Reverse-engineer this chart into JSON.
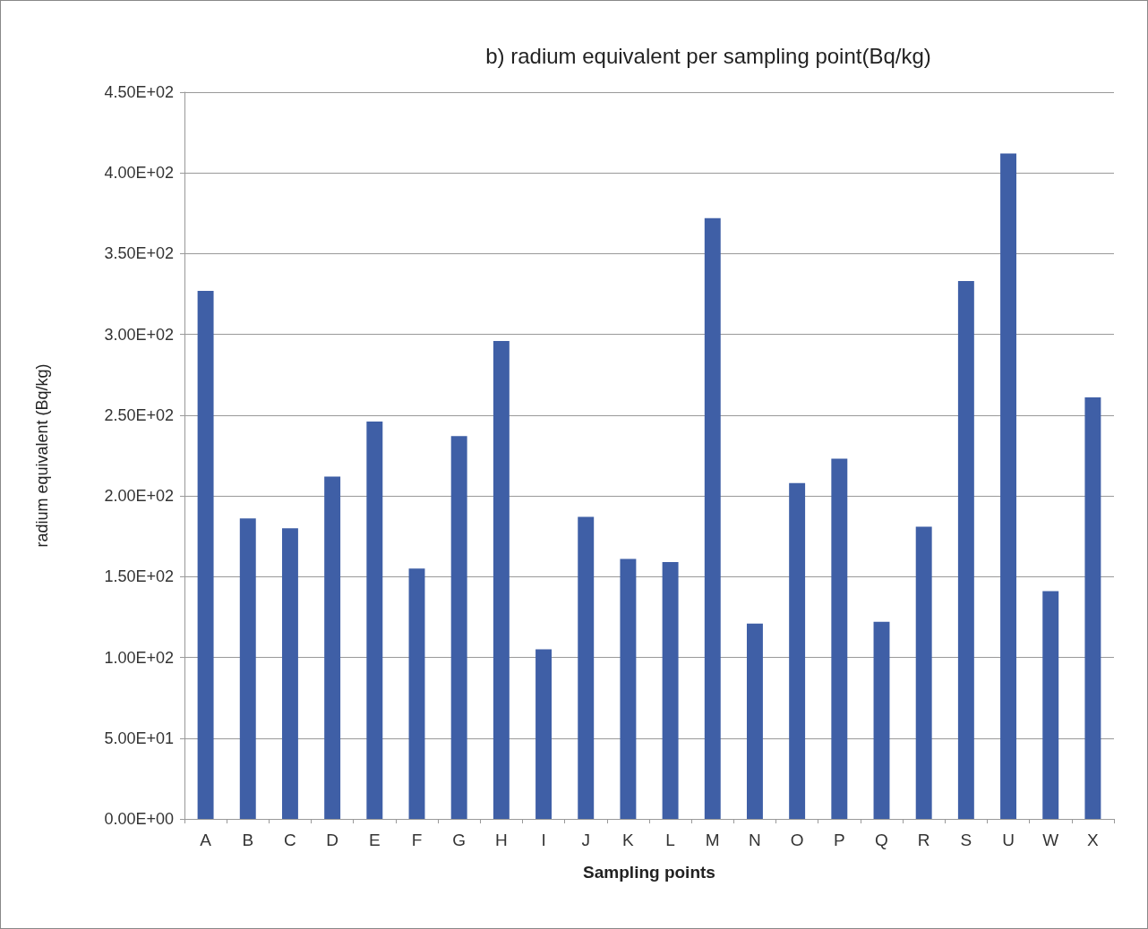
{
  "chart_data": {
    "type": "bar",
    "title": "b) radium equivalent per sampling point(Bq/kg)",
    "xlabel": "Sampling points",
    "ylabel": "radium equivalent (Bq/kg)",
    "categories": [
      "A",
      "B",
      "C",
      "D",
      "E",
      "F",
      "G",
      "H",
      "I",
      "J",
      "K",
      "L",
      "M",
      "N",
      "O",
      "P",
      "Q",
      "R",
      "S",
      "U",
      "W",
      "X"
    ],
    "values": [
      327,
      186,
      180,
      212,
      246,
      155,
      237,
      296,
      105,
      187,
      161,
      159,
      372,
      121,
      208,
      223,
      122,
      181,
      333,
      412,
      141,
      261
    ],
    "color": "#3f5fa6",
    "ylim": [
      0,
      450
    ],
    "yticks": [
      {
        "value": 0,
        "label": "0.00E+00"
      },
      {
        "value": 50,
        "label": "5.00E+01"
      },
      {
        "value": 100,
        "label": "1.00E+02"
      },
      {
        "value": 150,
        "label": "1.50E+02"
      },
      {
        "value": 200,
        "label": "2.00E+02"
      },
      {
        "value": 250,
        "label": "2.50E+02"
      },
      {
        "value": 300,
        "label": "3.00E+02"
      },
      {
        "value": 350,
        "label": "3.50E+02"
      },
      {
        "value": 400,
        "label": "4.00E+02"
      },
      {
        "value": 450,
        "label": "4.50E+02"
      }
    ],
    "grid": "y"
  }
}
